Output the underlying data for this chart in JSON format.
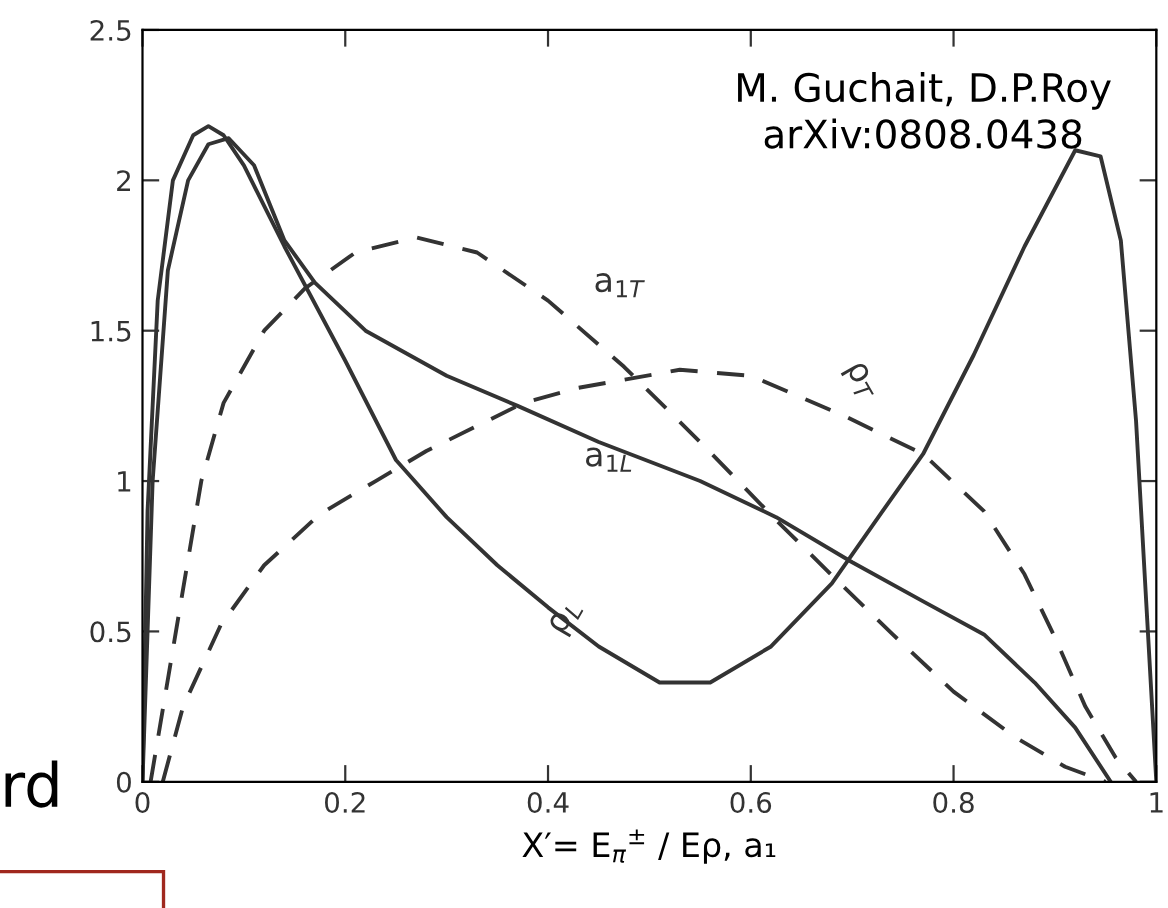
{
  "chart_data": {
    "type": "line",
    "xlabel": "X′= E$_{π}$$^{±}$ / Eρ, a₁",
    "xlim": [
      0,
      1
    ],
    "ylim": [
      0,
      2.5
    ],
    "xticks": [
      0,
      0.2,
      0.4,
      0.6,
      0.8,
      1
    ],
    "yticks": [
      0,
      0.5,
      1,
      1.5,
      2,
      2.5
    ],
    "grid": false,
    "legend": false,
    "marker": "none",
    "annotations": [
      "M. Guchait, D.P.Roy\narXiv:0808.0438",
      "rd"
    ],
    "series": [
      {
        "name": "ρ$_{L}$",
        "color": "#333333",
        "line_style": "solid",
        "x": [
          0,
          0.005,
          0.015,
          0.03,
          0.05,
          0.065,
          0.08,
          0.1,
          0.14,
          0.2,
          0.25,
          0.3,
          0.35,
          0.4,
          0.45,
          0.51,
          0.56,
          0.62,
          0.68,
          0.73,
          0.77,
          0.82,
          0.87,
          0.92,
          0.945,
          0.965,
          0.98,
          0.99,
          1.0
        ],
        "values": [
          0,
          0.9,
          1.6,
          2.0,
          2.15,
          2.18,
          2.15,
          2.05,
          1.78,
          1.4,
          1.07,
          0.88,
          0.72,
          0.58,
          0.45,
          0.33,
          0.33,
          0.45,
          0.66,
          0.9,
          1.09,
          1.42,
          1.78,
          2.1,
          2.08,
          1.8,
          1.2,
          0.6,
          0
        ]
      },
      {
        "name": "a$_{1L}$",
        "color": "#333333",
        "line_style": "solid",
        "x": [
          0,
          0.01,
          0.025,
          0.045,
          0.065,
          0.085,
          0.11,
          0.14,
          0.17,
          0.22,
          0.3,
          0.37,
          0.45,
          0.55,
          0.625,
          0.7,
          0.77,
          0.83,
          0.88,
          0.92,
          0.955
        ],
        "values": [
          0,
          1.0,
          1.7,
          2.0,
          2.12,
          2.14,
          2.05,
          1.8,
          1.66,
          1.5,
          1.35,
          1.25,
          1.13,
          1.0,
          0.88,
          0.73,
          0.6,
          0.49,
          0.33,
          0.18,
          0
        ]
      },
      {
        "name": "a$_{1T}$",
        "color": "#333333",
        "line_style": "dashed",
        "x": [
          0.008,
          0.033,
          0.058,
          0.08,
          0.12,
          0.16,
          0.21,
          0.27,
          0.33,
          0.4,
          0.475,
          0.55,
          0.625,
          0.685,
          0.74,
          0.8,
          0.86,
          0.91,
          0.95
        ],
        "values": [
          0,
          0.5,
          1.0,
          1.26,
          1.5,
          1.64,
          1.76,
          1.81,
          1.76,
          1.6,
          1.38,
          1.13,
          0.87,
          0.67,
          0.49,
          0.3,
          0.15,
          0.05,
          0
        ]
      },
      {
        "name": "ρ$_{T}$",
        "color": "#333333",
        "line_style": "dashed",
        "x": [
          0.02,
          0.04,
          0.077,
          0.12,
          0.175,
          0.23,
          0.28,
          0.376,
          0.43,
          0.53,
          0.6,
          0.69,
          0.77,
          0.83,
          0.87,
          0.9,
          0.93,
          0.96,
          0.98
        ],
        "values": [
          0,
          0.25,
          0.52,
          0.72,
          0.89,
          1.0,
          1.1,
          1.26,
          1.31,
          1.37,
          1.35,
          1.22,
          1.09,
          0.9,
          0.69,
          0.48,
          0.25,
          0.08,
          0
        ]
      }
    ]
  }
}
